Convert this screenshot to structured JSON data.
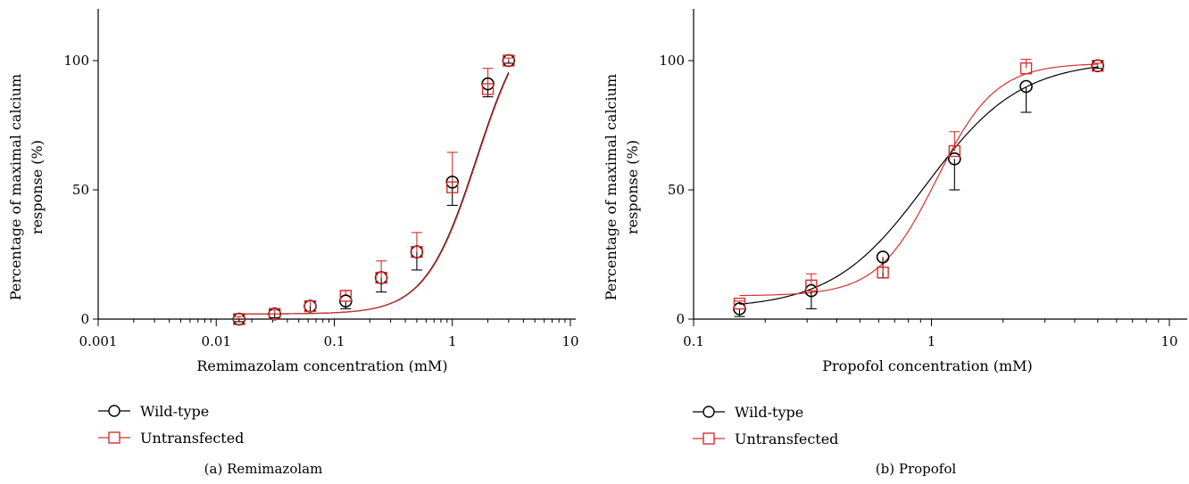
{
  "colors": {
    "wild_type": "#000000",
    "untransfected": "#d6302c"
  },
  "chart_data": [
    {
      "type": "scatter",
      "panel_caption": "(a) Remimazolam",
      "xlabel": "Remimazolam concentration (mM)",
      "ylabel": [
        "Percentage of maximal calcium",
        "response (%)"
      ],
      "xscale": "log",
      "xlim": [
        0.001,
        10
      ],
      "ylim": [
        0,
        120
      ],
      "xticks": [
        0.001,
        0.01,
        0.1,
        1,
        10
      ],
      "xtick_labels": [
        "0.001",
        "0.01",
        "0.1",
        "1",
        "10"
      ],
      "yticks": [
        0,
        50,
        100
      ],
      "ytick_labels": [
        "0",
        "50",
        "100"
      ],
      "legend": {
        "position": "bottom-left",
        "entries": [
          "Wild-type",
          "Untransfected"
        ]
      },
      "series": [
        {
          "name": "Wild-type",
          "marker": "circle",
          "color": "#000000",
          "x": [
            0.0156,
            0.03125,
            0.0625,
            0.125,
            0.25,
            0.5,
            1,
            2,
            3
          ],
          "y": [
            0,
            2,
            5,
            7,
            16,
            26,
            53,
            91,
            100
          ],
          "err": [
            1,
            1.5,
            2,
            3,
            5.5,
            7,
            9,
            5,
            1
          ],
          "err_dir": "down",
          "fit": {
            "bottom": 2,
            "top": 122,
            "ec50": 1.6,
            "hill": 2
          }
        },
        {
          "name": "Untransfected",
          "marker": "square",
          "color": "#d6302c",
          "x": [
            0.0156,
            0.03125,
            0.0625,
            0.125,
            0.25,
            0.5,
            1,
            2,
            3
          ],
          "y": [
            0,
            2,
            5,
            9,
            16,
            26,
            51,
            89,
            100
          ],
          "err": [
            1,
            1.5,
            2,
            2,
            6.5,
            7.5,
            13.5,
            8,
            1
          ],
          "err_dir": "up",
          "fit": {
            "bottom": 2,
            "top": 122,
            "ec50": 1.62,
            "hill": 2
          }
        }
      ]
    },
    {
      "type": "scatter",
      "panel_caption": "(b) Propofol",
      "xlabel": "Propofol concentration (mM)",
      "ylabel": [
        "Percentage of maximal calcium",
        "response (%)"
      ],
      "xscale": "log",
      "xlim": [
        0.1,
        10
      ],
      "ylim": [
        0,
        120
      ],
      "xticks": [
        0.1,
        1,
        10
      ],
      "xtick_labels": [
        "0.1",
        "1",
        "10"
      ],
      "yticks": [
        0,
        50,
        100
      ],
      "ytick_labels": [
        "0",
        "50",
        "100"
      ],
      "legend": {
        "position": "bottom-left",
        "entries": [
          "Wild-type",
          "Untransfected"
        ]
      },
      "series": [
        {
          "name": "Wild-type",
          "marker": "circle",
          "color": "#000000",
          "x": [
            0.156,
            0.3125,
            0.625,
            1.25,
            2.5,
            5
          ],
          "y": [
            4,
            11,
            24,
            62,
            90,
            98
          ],
          "err": [
            3,
            7,
            8,
            12,
            10,
            1
          ],
          "err_dir": "down",
          "fit": {
            "bottom": 4,
            "top": 100,
            "ec50": 0.95,
            "hill": 2.2
          }
        },
        {
          "name": "Untransfected",
          "marker": "square",
          "color": "#d6302c",
          "x": [
            0.156,
            0.3125,
            0.625,
            1.25,
            2.5,
            5
          ],
          "y": [
            6,
            13,
            18,
            65,
            97,
            98
          ],
          "err": [
            1,
            4.5,
            2,
            7.5,
            3.5,
            1
          ],
          "err_dir": "up",
          "fit": {
            "bottom": 9,
            "top": 99,
            "ec50": 1.05,
            "hill": 3.5
          }
        }
      ]
    }
  ]
}
